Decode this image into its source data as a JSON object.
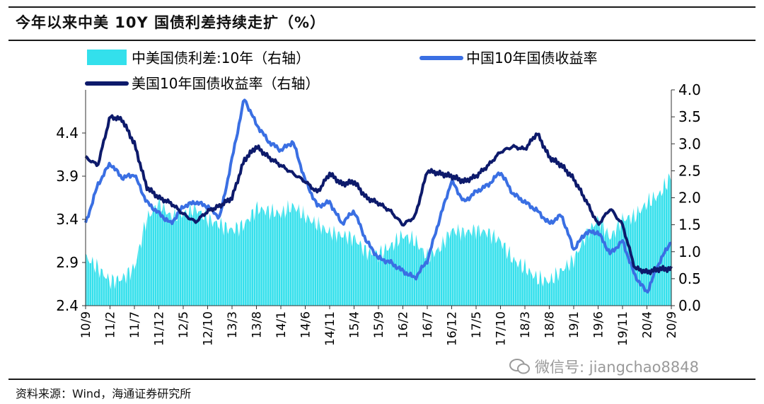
{
  "title": "今年以来中美 10Y 国债利差持续走扩（%）",
  "source": "资料来源：Wind，海通证券研究所",
  "watermark": "微信号: jiangchao8848",
  "colors": {
    "spread": "#33E0EC",
    "china": "#3A6FE3",
    "us": "#0D1A6B"
  },
  "chart_data": {
    "type": "line",
    "title": "今年以来中美 10Y 国债利差持续走扩（%）",
    "legend": [
      {
        "label": "中美国债利差:10年（右轴）",
        "kind": "area",
        "series": "spread"
      },
      {
        "label": "中国10年国债收益率",
        "kind": "line",
        "series": "china"
      },
      {
        "label": "美国10年国债收益率（右轴）",
        "kind": "line",
        "series": "us"
      }
    ],
    "x_ticks": [
      "10/9",
      "11/2",
      "11/7",
      "11/12",
      "12/5",
      "12/10",
      "13/3",
      "13/8",
      "14/1",
      "14/6",
      "14/11",
      "15/4",
      "15/9",
      "16/2",
      "16/7",
      "16/12",
      "17/5",
      "17/10",
      "18/3",
      "18/8",
      "19/1",
      "19/6",
      "19/11",
      "20/4",
      "20/9"
    ],
    "y_left": {
      "min": 2.4,
      "max": 4.9,
      "ticks": [
        "2.4",
        "2.9",
        "3.4",
        "3.9",
        "4.4"
      ]
    },
    "y_right": {
      "min": 0.0,
      "max": 4.0,
      "ticks": [
        "0.0",
        "0.5",
        "1.0",
        "1.5",
        "2.0",
        "2.5",
        "3.0",
        "3.5",
        "4.0"
      ]
    },
    "series": {
      "china": {
        "name": "中国10年国债收益率",
        "axis": "left",
        "x": [
          0,
          0.5,
          1,
          1.5,
          2,
          2.5,
          3,
          3.5,
          4,
          4.5,
          5,
          5.5,
          6,
          6.5,
          7,
          7.5,
          8,
          8.5,
          9,
          9.5,
          10,
          10.5,
          11,
          11.5,
          12,
          12.5,
          13,
          13.5,
          14,
          14.5,
          15,
          15.5,
          16,
          16.5,
          17,
          17.5,
          18,
          18.5,
          19,
          19.5,
          20,
          20.5,
          21,
          21.5,
          22,
          22.5,
          23,
          23.5,
          24
        ],
        "values": [
          3.35,
          3.8,
          4.05,
          3.88,
          3.92,
          3.6,
          3.47,
          3.35,
          3.55,
          3.6,
          3.55,
          3.42,
          4.1,
          4.8,
          4.5,
          4.3,
          4.2,
          4.3,
          3.85,
          3.55,
          3.6,
          3.35,
          3.5,
          3.15,
          2.95,
          2.9,
          2.8,
          2.72,
          2.92,
          3.4,
          3.85,
          3.6,
          3.72,
          3.8,
          3.95,
          3.7,
          3.6,
          3.5,
          3.35,
          3.45,
          3.05,
          3.25,
          3.25,
          3.0,
          3.15,
          2.75,
          2.55,
          2.9,
          3.15
        ]
      },
      "us": {
        "name": "美国10年国债收益率",
        "axis": "right",
        "x": [
          0,
          0.5,
          1,
          1.5,
          2,
          2.5,
          3,
          3.5,
          4,
          4.5,
          5,
          5.5,
          6,
          6.5,
          7,
          7.5,
          8,
          8.5,
          9,
          9.5,
          10,
          10.5,
          11,
          11.5,
          12,
          12.5,
          13,
          13.5,
          14,
          14.5,
          15,
          15.5,
          16,
          16.5,
          17,
          17.5,
          18,
          18.5,
          19,
          19.5,
          20,
          20.5,
          21,
          21.5,
          22,
          22.5,
          23,
          23.5,
          24
        ],
        "values": [
          2.75,
          2.6,
          3.5,
          3.45,
          3.0,
          2.2,
          2.0,
          1.9,
          1.7,
          1.55,
          1.75,
          1.85,
          2.0,
          2.7,
          2.95,
          2.75,
          2.6,
          2.45,
          2.3,
          2.1,
          2.45,
          2.25,
          2.3,
          2.0,
          1.9,
          1.75,
          1.5,
          1.65,
          2.5,
          2.45,
          2.4,
          2.3,
          2.4,
          2.6,
          2.85,
          2.95,
          2.9,
          3.2,
          2.75,
          2.6,
          2.35,
          1.95,
          1.5,
          1.8,
          1.5,
          0.7,
          0.62,
          0.68,
          0.68
        ]
      },
      "spread": {
        "name": "中美国债利差:10年",
        "axis": "right",
        "x": [
          0,
          0.5,
          1,
          1.5,
          2,
          2.5,
          3,
          3.5,
          4,
          4.5,
          5,
          5.5,
          6,
          6.5,
          7,
          7.5,
          8,
          8.5,
          9,
          9.5,
          10,
          10.5,
          11,
          11.5,
          12,
          12.5,
          13,
          13.5,
          14,
          14.5,
          15,
          15.5,
          16,
          16.5,
          17,
          17.5,
          18,
          18.5,
          19,
          19.5,
          20,
          20.5,
          21,
          21.5,
          22,
          22.5,
          23,
          23.5,
          24
        ],
        "values": [
          0.9,
          0.7,
          0.45,
          0.5,
          0.7,
          1.6,
          1.9,
          1.65,
          1.7,
          1.8,
          1.6,
          1.5,
          1.4,
          1.5,
          1.8,
          1.75,
          1.7,
          1.85,
          1.65,
          1.5,
          1.35,
          1.3,
          1.25,
          1.0,
          0.95,
          1.1,
          1.3,
          1.2,
          0.9,
          1.05,
          1.4,
          1.35,
          1.4,
          1.35,
          1.2,
          0.85,
          0.7,
          0.5,
          0.45,
          0.65,
          0.85,
          1.3,
          1.6,
          1.25,
          1.6,
          1.65,
          1.9,
          2.05,
          2.4
        ]
      }
    }
  }
}
